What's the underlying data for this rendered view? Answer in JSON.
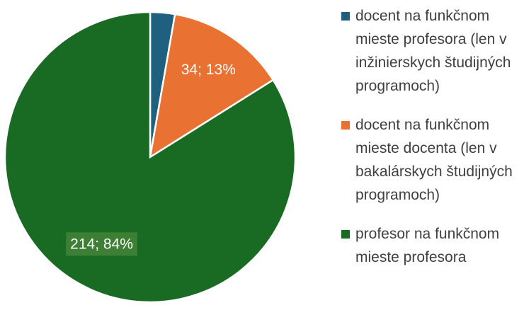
{
  "chart_data": {
    "type": "pie",
    "categories": [
      "docent na funkčnom mieste profesora (len v inžinierskych študijných programoch)",
      "docent na funkčnom mieste docenta (len v bakalárskych študijných programoch)",
      "profesor na funkčnom mieste profesora"
    ],
    "values": [
      7,
      34,
      214
    ],
    "value_labels": [
      null,
      "34; 13%",
      "214; 84%"
    ],
    "colors": [
      "#1f5f7f",
      "#e97132",
      "#196b24"
    ],
    "legend": "right"
  }
}
